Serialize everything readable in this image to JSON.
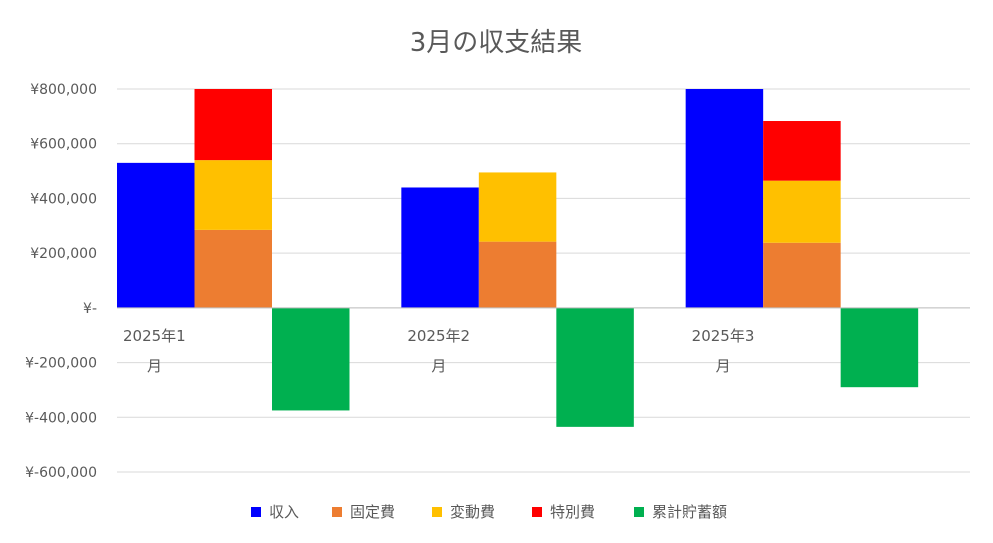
{
  "chart_data": {
    "type": "bar",
    "title": "3月の収支結果",
    "categories": [
      [
        "2025年1",
        "月"
      ],
      [
        "2025年2",
        "月"
      ],
      [
        "2025年3",
        "月"
      ]
    ],
    "ylim": [
      -600000,
      800000
    ],
    "yticks": [
      800000,
      600000,
      400000,
      200000,
      0,
      -200000,
      -400000,
      -600000
    ],
    "ytick_labels": [
      "¥800,000",
      "¥600,000",
      "¥400,000",
      "¥200,000",
      "¥-",
      "¥-200,000",
      "¥-400,000",
      "¥-600,000"
    ],
    "grid": true,
    "legend_position": "bottom",
    "stacked_groups": [
      "income",
      "expense",
      "savings"
    ],
    "series": [
      {
        "name": "収入",
        "stack": "income",
        "color": "#0000FF",
        "values": [
          530000,
          440000,
          800000
        ]
      },
      {
        "name": "固定費",
        "stack": "expense",
        "color": "#ED7D31",
        "values": [
          285000,
          242000,
          238000
        ]
      },
      {
        "name": "変動費",
        "stack": "expense",
        "color": "#FFC000",
        "values": [
          255000,
          253000,
          227000
        ]
      },
      {
        "name": "特別費",
        "stack": "expense",
        "color": "#FF0000",
        "values": [
          260000,
          0,
          218000
        ]
      },
      {
        "name": "累計貯蓄額",
        "stack": "savings",
        "color": "#00B050",
        "values": [
          -375000,
          -435000,
          -290000
        ]
      }
    ]
  }
}
